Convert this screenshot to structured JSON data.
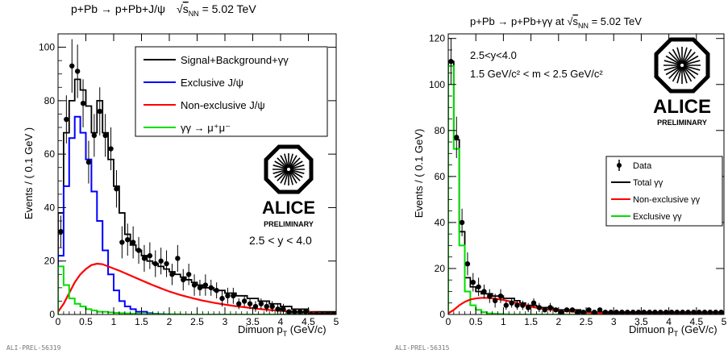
{
  "chart_data": [
    {
      "type": "histogram",
      "title": "p+Pb → p+Pb+J/ψ   √s_NN = 5.02 TeV",
      "title_parts": {
        "main": "p+Pb → p+Pb+J/ψ",
        "sqrt": "√",
        "s": "s",
        "sub": "NN",
        "energy": " = 5.02 TeV"
      },
      "ylabel": "Events / ( 0.1 GeV )",
      "xlabel": "Dimuon p_T (GeV/c)",
      "xlabel_parts": {
        "main": "Dimuon p",
        "sub": "T",
        "unit": " (GeV/c)"
      },
      "xlim": [
        0,
        5
      ],
      "ylim": [
        0,
        105
      ],
      "grid": false,
      "legend_position": "top-right",
      "xticks": [
        "0",
        "0.5",
        "1",
        "1.5",
        "2",
        "2.5",
        "3",
        "3.5",
        "4",
        "4.5",
        "5"
      ],
      "yticks": [
        "0",
        "20",
        "40",
        "60",
        "80",
        "100"
      ],
      "annotation": "2.5 < y < 4.0",
      "watermark": "ALI-PREL-56319",
      "logo": {
        "name": "ALICE",
        "sub": "PRELIMINARY"
      },
      "colors": {
        "total": "#000000",
        "exclusive": "#0000ff",
        "nonexclusive": "#ff0000",
        "gammagamma": "#00dd00"
      },
      "legend": [
        {
          "label": "Signal+Background+γγ",
          "color": "#000000"
        },
        {
          "label": "Exclusive J/ψ",
          "color": "#0000ff"
        },
        {
          "label": "Non-exclusive J/ψ",
          "color": "#ff0000"
        },
        {
          "label": "γγ → μ⁺μ⁻",
          "color": "#00dd00"
        }
      ],
      "bin_width": 0.1,
      "series": [
        {
          "name": "Signal+Background+γγ",
          "style": "step",
          "color": "#000000",
          "values": [
            38,
            68,
            80,
            88,
            84,
            78,
            68,
            80,
            68,
            58,
            48,
            38,
            30,
            26,
            24,
            22,
            20,
            19,
            18,
            17,
            16,
            15,
            14,
            13,
            12,
            11,
            10,
            10,
            9,
            9,
            8,
            8,
            7,
            7,
            6,
            6,
            5,
            5,
            4,
            4,
            3,
            3,
            2,
            2,
            2,
            1,
            1,
            1,
            1,
            1
          ]
        },
        {
          "name": "Exclusive J/ψ",
          "style": "step",
          "color": "#0000ff",
          "values": [
            22,
            48,
            66,
            74,
            68,
            58,
            46,
            35,
            24,
            15,
            9,
            5,
            3,
            2,
            1,
            1,
            0.5,
            0.3,
            0.2,
            0.1,
            0,
            0,
            0,
            0,
            0,
            0,
            0,
            0,
            0,
            0,
            0,
            0,
            0,
            0,
            0,
            0,
            0,
            0,
            0,
            0,
            0,
            0,
            0,
            0,
            0,
            0,
            0,
            0,
            0,
            0
          ]
        },
        {
          "name": "Non-exclusive J/ψ",
          "style": "curve",
          "color": "#ff0000",
          "x": [
            0,
            0.1,
            0.2,
            0.3,
            0.4,
            0.5,
            0.6,
            0.7,
            0.8,
            0.9,
            1.0,
            1.1,
            1.2,
            1.3,
            1.4,
            1.5,
            1.6,
            1.7,
            1.8,
            1.9,
            2.0,
            2.2,
            2.4,
            2.6,
            2.8,
            3.0,
            3.2,
            3.4,
            3.6,
            3.8,
            4.0,
            4.2,
            4.4,
            4.6,
            4.8,
            5.0
          ],
          "values": [
            1,
            4,
            8,
            12,
            15,
            17,
            18.5,
            19,
            18.8,
            18,
            17.2,
            16.4,
            15.5,
            14.6,
            13.7,
            12.8,
            11.9,
            11,
            10.2,
            9.4,
            8.6,
            7.3,
            6.2,
            5.2,
            4.4,
            3.7,
            3.1,
            2.6,
            2.1,
            1.7,
            1.4,
            1.1,
            0.9,
            0.7,
            0.5,
            0.4
          ]
        },
        {
          "name": "γγ → μ⁺μ⁻",
          "style": "step",
          "color": "#00dd00",
          "values": [
            18,
            11,
            6,
            4,
            3,
            2,
            1.5,
            1,
            1,
            0.8,
            0.6,
            0.5,
            0.4,
            0.3,
            0.3,
            0.2,
            0.2,
            0.2,
            0.1,
            0.1,
            0.1,
            0.1,
            0,
            0,
            0,
            0,
            0,
            0,
            0,
            0,
            0,
            0,
            0,
            0,
            0,
            0,
            0,
            0,
            0,
            0,
            0,
            0,
            0,
            0,
            0,
            0,
            0,
            0,
            0,
            0
          ]
        },
        {
          "name": "Data",
          "style": "points",
          "color": "#000000",
          "x": [
            0.05,
            0.15,
            0.25,
            0.35,
            0.45,
            0.55,
            0.65,
            0.75,
            0.85,
            0.95,
            1.05,
            1.15,
            1.25,
            1.35,
            1.45,
            1.55,
            1.65,
            1.75,
            1.85,
            1.95,
            2.05,
            2.15,
            2.25,
            2.35,
            2.45,
            2.55,
            2.65,
            2.75,
            2.85,
            2.95,
            3.05,
            3.15,
            3.25,
            3.35,
            3.45,
            3.55,
            3.65,
            3.75,
            3.85,
            3.95,
            4.05,
            4.15,
            4.25,
            4.35,
            4.45,
            4.55,
            4.65,
            4.75,
            4.85,
            4.95
          ],
          "values": [
            31,
            73,
            93,
            91,
            79,
            57,
            67,
            76,
            67,
            62,
            47,
            27,
            28,
            27,
            24,
            21,
            22,
            19,
            20,
            19,
            15,
            21,
            13,
            15,
            11,
            10,
            11,
            10,
            9,
            6,
            7,
            7,
            4,
            5,
            4,
            3,
            4,
            3,
            3,
            2,
            2,
            1,
            1,
            1,
            1,
            0,
            0,
            0,
            0,
            0
          ],
          "errors": [
            6,
            9,
            10,
            10,
            9,
            8,
            8,
            9,
            8,
            8,
            7,
            6,
            6,
            6,
            5,
            5,
            5,
            5,
            5,
            5,
            4,
            5,
            4,
            4,
            4,
            3,
            4,
            3,
            3,
            3,
            3,
            3,
            2,
            2,
            2,
            2,
            2,
            2,
            2,
            2,
            2,
            1,
            1,
            1,
            1,
            1,
            1,
            1,
            1,
            1
          ]
        }
      ]
    },
    {
      "type": "histogram",
      "title": "p+Pb → p+Pb+γγ at √s_NN = 5.02 TeV",
      "title_parts": {
        "main": "p+Pb → p+Pb+γγ at ",
        "sqrt": "√",
        "s": "s",
        "sub": "NN",
        "energy": " = 5.02 TeV"
      },
      "ylabel": "Events / ( 0.1 GeV)",
      "xlabel": "Dimuon p_T (GeV/c)",
      "xlabel_parts": {
        "main": "Dimuon p",
        "sub": "T",
        "unit": " (GeV/c)"
      },
      "xlim": [
        0,
        5
      ],
      "ylim": [
        0,
        122
      ],
      "grid": false,
      "legend_position": "right",
      "xticks": [
        "0",
        "0.5",
        "1",
        "1.5",
        "2",
        "2.5",
        "3",
        "3.5",
        "4",
        "4.5",
        "5"
      ],
      "yticks": [
        "0",
        "20",
        "40",
        "60",
        "80",
        "100",
        "120"
      ],
      "annotations": [
        "2.5<y<4.0",
        "1.5 GeV/c² < m < 2.5 GeV/c²"
      ],
      "watermark": "ALI-PREL-56315",
      "logo": {
        "name": "ALICE",
        "sub": "PRELIMINARY"
      },
      "colors": {
        "total": "#000000",
        "nonexclusive": "#ff0000",
        "exclusive": "#00dd00"
      },
      "legend": [
        {
          "label": "Data",
          "color": "#000000",
          "marker": "point"
        },
        {
          "label": "Total γγ",
          "color": "#000000"
        },
        {
          "label": "Non-exclusive γγ",
          "color": "#ff0000"
        },
        {
          "label": "Exclusive γγ",
          "color": "#00dd00"
        }
      ],
      "bin_width": 0.1,
      "series": [
        {
          "name": "Total γγ",
          "style": "step",
          "color": "#000000",
          "values": [
            110,
            76,
            36,
            16,
            12,
            10,
            9,
            9,
            8,
            8,
            7,
            7,
            6,
            5,
            4,
            4,
            3,
            3,
            3,
            2,
            2,
            2,
            2,
            2,
            1,
            1,
            1,
            1,
            1,
            1,
            1,
            1,
            1,
            1,
            1,
            1,
            1,
            0,
            0,
            0,
            0,
            0,
            0,
            0,
            0,
            0,
            0,
            0,
            0,
            0
          ]
        },
        {
          "name": "Exclusive γγ",
          "style": "step",
          "color": "#00dd00",
          "values": [
            108,
            72,
            30,
            10,
            4,
            2,
            1,
            0.5,
            0.3,
            0.2,
            0.1,
            0,
            0,
            0,
            0,
            0,
            0,
            0,
            0,
            0,
            0,
            0,
            0,
            0,
            0,
            0,
            0,
            0,
            0,
            0,
            0,
            0,
            0,
            0,
            0,
            0,
            0,
            0,
            0,
            0,
            0,
            0,
            0,
            0,
            0,
            0,
            0,
            0,
            0,
            0
          ]
        },
        {
          "name": "Non-exclusive γγ",
          "style": "curve",
          "color": "#ff0000",
          "x": [
            0,
            0.1,
            0.2,
            0.3,
            0.4,
            0.5,
            0.6,
            0.7,
            0.8,
            0.9,
            1.0,
            1.1,
            1.2,
            1.3,
            1.4,
            1.5,
            1.6,
            1.8,
            2.0,
            2.2,
            2.4,
            2.6,
            2.8,
            3.0,
            3.2,
            3.4,
            3.6,
            3.8,
            4.0,
            4.2,
            4.4,
            4.6,
            4.8,
            5.0
          ],
          "values": [
            0.5,
            2,
            4,
            5.5,
            6.5,
            7,
            7.2,
            7.2,
            7,
            6.7,
            6.3,
            5.8,
            5.2,
            4.6,
            4,
            3.4,
            2.9,
            2.2,
            1.7,
            1.3,
            1,
            0.8,
            0.6,
            0.5,
            0.4,
            0.3,
            0.25,
            0.2,
            0.15,
            0.12,
            0.1,
            0.08,
            0.06,
            0.05
          ]
        },
        {
          "name": "Data",
          "style": "points",
          "color": "#000000",
          "x": [
            0.05,
            0.15,
            0.25,
            0.35,
            0.45,
            0.55,
            0.65,
            0.75,
            0.85,
            0.95,
            1.05,
            1.15,
            1.25,
            1.35,
            1.45,
            1.55,
            1.65,
            1.75,
            1.85,
            1.95,
            2.05,
            2.15,
            2.25,
            2.35,
            2.45,
            2.55,
            2.65,
            2.75,
            2.85,
            2.95,
            3.05,
            3.15,
            3.25,
            3.35,
            3.45,
            3.55,
            3.65,
            3.75,
            3.85,
            3.95,
            4.05,
            4.15,
            4.25,
            4.35,
            4.45,
            4.55,
            4.65,
            4.75,
            4.85,
            4.95
          ],
          "values": [
            110,
            77,
            40,
            22,
            14,
            12,
            10,
            8,
            6,
            8,
            4,
            5,
            4,
            4,
            3,
            5,
            3,
            2,
            3,
            2,
            1,
            2,
            2,
            1,
            1,
            2,
            1,
            2,
            1,
            1,
            1,
            1,
            1,
            1,
            1,
            1,
            1,
            1,
            1,
            1,
            1,
            1,
            1,
            1,
            1,
            1,
            1,
            1,
            1,
            1
          ],
          "errors": [
            10,
            9,
            6,
            5,
            4,
            4,
            3,
            3,
            3,
            3,
            2,
            2,
            2,
            2,
            2,
            2,
            2,
            1,
            2,
            1,
            1,
            1,
            1,
            1,
            1,
            1,
            1,
            1,
            1,
            1,
            1,
            1,
            1,
            1,
            1,
            1,
            1,
            1,
            1,
            1,
            1,
            1,
            1,
            1,
            1,
            1,
            1,
            1,
            1,
            1
          ]
        }
      ]
    }
  ]
}
